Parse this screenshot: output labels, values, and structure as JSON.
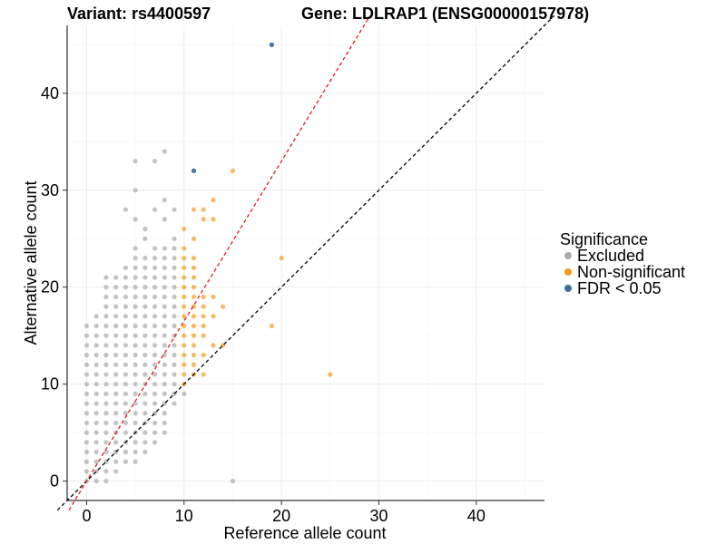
{
  "chart_data": {
    "type": "scatter",
    "title_left": "Variant: rs4400597",
    "title_right": "Gene: LDLRAP1 (ENSG00000157978)",
    "xlabel": "Reference allele count",
    "ylabel": "Alternative allele count",
    "xlim": [
      -2,
      47
    ],
    "ylim": [
      -2,
      47
    ],
    "x_ticks": [
      0,
      10,
      20,
      30,
      40
    ],
    "y_ticks": [
      0,
      10,
      20,
      30,
      40
    ],
    "grid": true,
    "legend_position": "right",
    "legend_title": "Significance",
    "reference_lines": [
      {
        "slope": 1,
        "intercept": 0,
        "color": "#000000",
        "style": "dashed"
      },
      {
        "slope": 1.65,
        "intercept": 0,
        "color": "#e41a1c",
        "style": "dashed"
      }
    ],
    "series": [
      {
        "name": "Excluded",
        "color": "#aaaaaa",
        "points": [
          [
            0,
            0
          ],
          [
            0,
            1
          ],
          [
            0,
            2
          ],
          [
            0,
            3
          ],
          [
            0,
            4
          ],
          [
            0,
            5
          ],
          [
            0,
            6
          ],
          [
            0,
            7
          ],
          [
            0,
            8
          ],
          [
            0,
            9
          ],
          [
            0,
            10
          ],
          [
            0,
            11
          ],
          [
            0,
            12
          ],
          [
            0,
            13
          ],
          [
            0,
            14
          ],
          [
            0,
            15
          ],
          [
            0,
            16
          ],
          [
            1,
            0
          ],
          [
            1,
            1
          ],
          [
            1,
            2
          ],
          [
            1,
            3
          ],
          [
            1,
            4
          ],
          [
            1,
            5
          ],
          [
            1,
            6
          ],
          [
            1,
            7
          ],
          [
            1,
            8
          ],
          [
            1,
            9
          ],
          [
            1,
            10
          ],
          [
            1,
            11
          ],
          [
            1,
            12
          ],
          [
            1,
            13
          ],
          [
            1,
            14
          ],
          [
            1,
            15
          ],
          [
            1,
            16
          ],
          [
            1,
            17
          ],
          [
            2,
            0
          ],
          [
            2,
            1
          ],
          [
            2,
            2
          ],
          [
            2,
            3
          ],
          [
            2,
            4
          ],
          [
            2,
            5
          ],
          [
            2,
            6
          ],
          [
            2,
            7
          ],
          [
            2,
            8
          ],
          [
            2,
            9
          ],
          [
            2,
            10
          ],
          [
            2,
            11
          ],
          [
            2,
            12
          ],
          [
            2,
            13
          ],
          [
            2,
            14
          ],
          [
            2,
            15
          ],
          [
            2,
            16
          ],
          [
            2,
            17
          ],
          [
            2,
            18
          ],
          [
            2,
            19
          ],
          [
            2,
            20
          ],
          [
            2,
            21
          ],
          [
            3,
            1
          ],
          [
            3,
            2
          ],
          [
            3,
            3
          ],
          [
            3,
            4
          ],
          [
            3,
            5
          ],
          [
            3,
            6
          ],
          [
            3,
            7
          ],
          [
            3,
            8
          ],
          [
            3,
            9
          ],
          [
            3,
            10
          ],
          [
            3,
            11
          ],
          [
            3,
            12
          ],
          [
            3,
            13
          ],
          [
            3,
            14
          ],
          [
            3,
            15
          ],
          [
            3,
            16
          ],
          [
            3,
            17
          ],
          [
            3,
            18
          ],
          [
            3,
            19
          ],
          [
            3,
            20
          ],
          [
            3,
            21
          ],
          [
            4,
            2
          ],
          [
            4,
            3
          ],
          [
            4,
            4
          ],
          [
            4,
            5
          ],
          [
            4,
            6
          ],
          [
            4,
            7
          ],
          [
            4,
            8
          ],
          [
            4,
            9
          ],
          [
            4,
            10
          ],
          [
            4,
            11
          ],
          [
            4,
            12
          ],
          [
            4,
            13
          ],
          [
            4,
            14
          ],
          [
            4,
            15
          ],
          [
            4,
            16
          ],
          [
            4,
            17
          ],
          [
            4,
            18
          ],
          [
            4,
            19
          ],
          [
            4,
            20
          ],
          [
            4,
            21
          ],
          [
            4,
            22
          ],
          [
            4,
            28
          ],
          [
            5,
            2
          ],
          [
            5,
            3
          ],
          [
            5,
            4
          ],
          [
            5,
            5
          ],
          [
            5,
            6
          ],
          [
            5,
            7
          ],
          [
            5,
            8
          ],
          [
            5,
            9
          ],
          [
            5,
            10
          ],
          [
            5,
            11
          ],
          [
            5,
            12
          ],
          [
            5,
            13
          ],
          [
            5,
            14
          ],
          [
            5,
            15
          ],
          [
            5,
            16
          ],
          [
            5,
            17
          ],
          [
            5,
            18
          ],
          [
            5,
            19
          ],
          [
            5,
            20
          ],
          [
            5,
            21
          ],
          [
            5,
            22
          ],
          [
            5,
            23
          ],
          [
            5,
            24
          ],
          [
            5,
            27
          ],
          [
            5,
            30
          ],
          [
            5,
            33
          ],
          [
            6,
            3
          ],
          [
            6,
            4
          ],
          [
            6,
            5
          ],
          [
            6,
            6
          ],
          [
            6,
            7
          ],
          [
            6,
            8
          ],
          [
            6,
            9
          ],
          [
            6,
            10
          ],
          [
            6,
            11
          ],
          [
            6,
            12
          ],
          [
            6,
            13
          ],
          [
            6,
            14
          ],
          [
            6,
            15
          ],
          [
            6,
            16
          ],
          [
            6,
            17
          ],
          [
            6,
            18
          ],
          [
            6,
            19
          ],
          [
            6,
            20
          ],
          [
            6,
            21
          ],
          [
            6,
            22
          ],
          [
            6,
            23
          ],
          [
            6,
            25
          ],
          [
            6,
            26
          ],
          [
            7,
            4
          ],
          [
            7,
            5
          ],
          [
            7,
            6
          ],
          [
            7,
            7
          ],
          [
            7,
            8
          ],
          [
            7,
            9
          ],
          [
            7,
            10
          ],
          [
            7,
            11
          ],
          [
            7,
            12
          ],
          [
            7,
            13
          ],
          [
            7,
            14
          ],
          [
            7,
            15
          ],
          [
            7,
            16
          ],
          [
            7,
            17
          ],
          [
            7,
            18
          ],
          [
            7,
            19
          ],
          [
            7,
            20
          ],
          [
            7,
            21
          ],
          [
            7,
            22
          ],
          [
            7,
            23
          ],
          [
            7,
            24
          ],
          [
            7,
            28
          ],
          [
            7,
            33
          ],
          [
            8,
            5
          ],
          [
            8,
            6
          ],
          [
            8,
            7
          ],
          [
            8,
            8
          ],
          [
            8,
            9
          ],
          [
            8,
            10
          ],
          [
            8,
            11
          ],
          [
            8,
            12
          ],
          [
            8,
            13
          ],
          [
            8,
            14
          ],
          [
            8,
            15
          ],
          [
            8,
            16
          ],
          [
            8,
            17
          ],
          [
            8,
            18
          ],
          [
            8,
            19
          ],
          [
            8,
            20
          ],
          [
            8,
            21
          ],
          [
            8,
            22
          ],
          [
            8,
            23
          ],
          [
            8,
            24
          ],
          [
            8,
            27
          ],
          [
            8,
            29
          ],
          [
            8,
            34
          ],
          [
            9,
            8
          ],
          [
            9,
            9
          ],
          [
            9,
            10
          ],
          [
            9,
            11
          ],
          [
            9,
            12
          ],
          [
            9,
            13
          ],
          [
            9,
            14
          ],
          [
            9,
            15
          ],
          [
            9,
            16
          ],
          [
            9,
            17
          ],
          [
            9,
            18
          ],
          [
            9,
            19
          ],
          [
            9,
            20
          ],
          [
            9,
            21
          ],
          [
            9,
            22
          ],
          [
            9,
            23
          ],
          [
            9,
            24
          ],
          [
            9,
            25
          ],
          [
            9,
            28
          ],
          [
            10,
            9
          ],
          [
            15,
            0
          ]
        ]
      },
      {
        "name": "Non-significant",
        "color": "#f39c1f",
        "points": [
          [
            10,
            10
          ],
          [
            10,
            11
          ],
          [
            10,
            12
          ],
          [
            10,
            13
          ],
          [
            10,
            14
          ],
          [
            10,
            15
          ],
          [
            10,
            16
          ],
          [
            10,
            17
          ],
          [
            10,
            18
          ],
          [
            10,
            19
          ],
          [
            10,
            20
          ],
          [
            10,
            21
          ],
          [
            10,
            22
          ],
          [
            10,
            23
          ],
          [
            10,
            24
          ],
          [
            10,
            26
          ],
          [
            11,
            11
          ],
          [
            11,
            12
          ],
          [
            11,
            13
          ],
          [
            11,
            14
          ],
          [
            11,
            15
          ],
          [
            11,
            16
          ],
          [
            11,
            17
          ],
          [
            11,
            18
          ],
          [
            11,
            19
          ],
          [
            11,
            20
          ],
          [
            11,
            21
          ],
          [
            11,
            22
          ],
          [
            11,
            23
          ],
          [
            11,
            25
          ],
          [
            11,
            28
          ],
          [
            12,
            11
          ],
          [
            12,
            13
          ],
          [
            12,
            15
          ],
          [
            12,
            16
          ],
          [
            12,
            17
          ],
          [
            12,
            18
          ],
          [
            12,
            19
          ],
          [
            12,
            27
          ],
          [
            12,
            28
          ],
          [
            13,
            14
          ],
          [
            13,
            17
          ],
          [
            13,
            19
          ],
          [
            13,
            27
          ],
          [
            13,
            29
          ],
          [
            14,
            14
          ],
          [
            14,
            18
          ],
          [
            15,
            32
          ],
          [
            19,
            16
          ],
          [
            20,
            23
          ],
          [
            25,
            11
          ]
        ]
      },
      {
        "name": "FDR < 0.05",
        "color": "#3c6e9e",
        "points": [
          [
            11,
            32
          ],
          [
            19,
            45
          ]
        ]
      }
    ]
  }
}
